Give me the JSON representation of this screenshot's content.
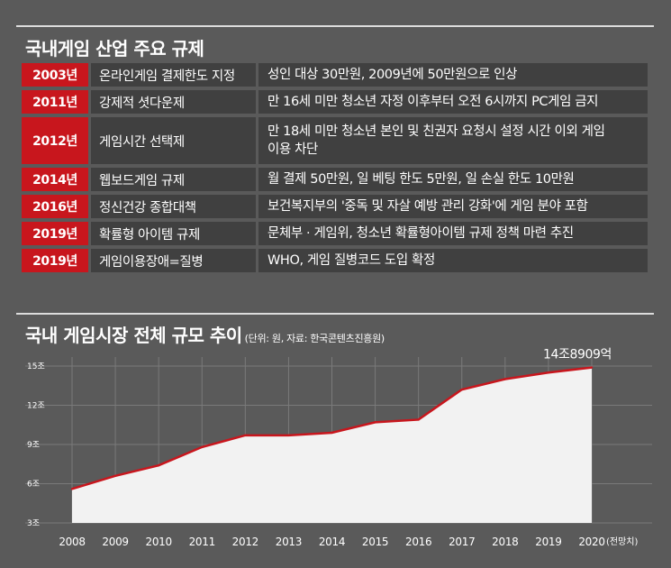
{
  "regulations": {
    "title": "국내게임 산업 주요 규제",
    "rows": [
      {
        "year": "2003년",
        "rule": "온라인게임 결제한도 지정",
        "desc": "성인 대상 30만원, 2009년에 50만원으로 인상"
      },
      {
        "year": "2011년",
        "rule": "강제적 셧다운제",
        "desc": "만 16세 미만 청소년 자정 이후부터 오전 6시까지  PC게임 금지"
      },
      {
        "year": "2012년",
        "rule": "게임시간 선택제",
        "desc": "만 18세 미만 청소년 본인 및 친권자 요청시 설정 시간 이외 게임이용 차단"
      },
      {
        "year": "2014년",
        "rule": "웹보드게임 규제",
        "desc": "월 결제 50만원, 일 베팅 한도 5만원, 일 손실 한도 10만원"
      },
      {
        "year": "2016년",
        "rule": "정신건강 종합대책",
        "desc": "보건복지부의 '중독 및 자살 예방 관리 강화'에 게임 분야 포함"
      },
      {
        "year": "2019년",
        "rule": "확률형 아이템 규제",
        "desc": "문체부 · 게임위, 청소년 확률형아이템 규제 정책 마련 추진"
      },
      {
        "year": "2019년",
        "rule": "게임이용장애=질병",
        "desc": "WHO, 게임 질병코드 도입 확정"
      }
    ]
  },
  "chart_data": {
    "type": "area",
    "title": "국내 게임시장 전체 규모 추이",
    "subtitle": "(단위: 원, 자료: 한국콘텐츠진흥원)",
    "x": [
      "2008",
      "2009",
      "2010",
      "2011",
      "2012",
      "2013",
      "2014",
      "2015",
      "2016",
      "2017",
      "2018",
      "2019",
      "2020"
    ],
    "x_note": "(전망치)",
    "values": [
      5.6,
      6.6,
      7.4,
      8.8,
      9.7,
      9.7,
      9.9,
      10.7,
      10.9,
      13.2,
      14.0,
      14.5,
      14.89
    ],
    "y_ticks": [
      "3조",
      "6조",
      "9조",
      "12조",
      "15조"
    ],
    "ylim": [
      3,
      15
    ],
    "annotation": "14조8909억",
    "fill_color": "#f2f2f2",
    "line_color": "#c8161d",
    "grid": true
  }
}
